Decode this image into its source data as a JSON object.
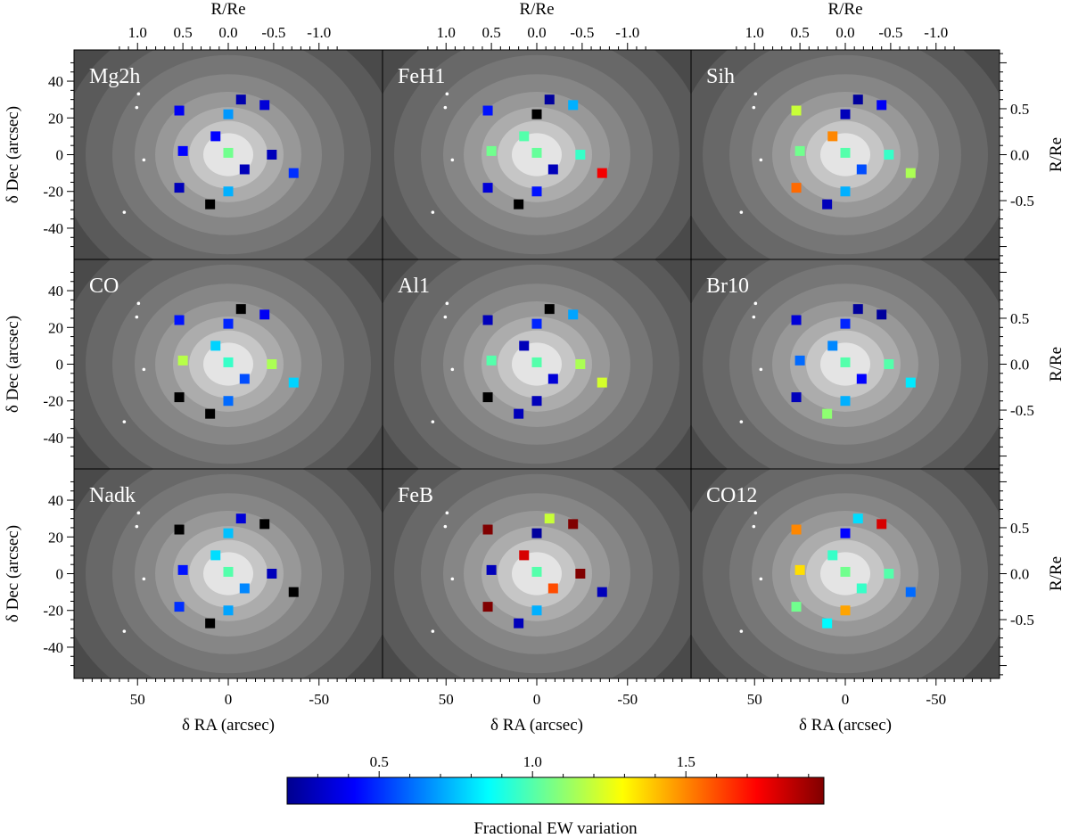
{
  "chart_data": {
    "type": "heatmap",
    "colorbar": {
      "label": "Fractional EW variation",
      "range": [
        0.2,
        1.95
      ],
      "ticks": [
        "0.5",
        "1.0",
        "1.5"
      ],
      "colormap": "jet"
    },
    "axes": {
      "xlabel": "δ RA (arcsec)",
      "ylabel": "δ Dec (arcsec)",
      "top_label": "R/Re",
      "right_label": "R/Re",
      "xlim": [
        85,
        -85
      ],
      "ylim": [
        -57,
        57
      ],
      "x_ticks": [
        "50",
        "0",
        "-50"
      ],
      "y_ticks": [
        "40",
        "20",
        "0",
        "-20",
        "-40"
      ],
      "top_ticks": [
        "1.0",
        "0.5",
        "0.0",
        "-0.5",
        "-1.0"
      ],
      "right_ticks": [
        "0.5",
        "0.0",
        "-0.5"
      ],
      "x_axis_reversed": true,
      "arcsec_per_re": 50
    },
    "positions": [
      [
        -7,
        30
      ],
      [
        27,
        24
      ],
      [
        -20,
        27
      ],
      [
        0,
        22
      ],
      [
        7,
        10
      ],
      [
        0,
        1
      ],
      [
        -9,
        -8
      ],
      [
        -24,
        0
      ],
      [
        25,
        2
      ],
      [
        -36,
        -10
      ],
      [
        27,
        -18
      ],
      [
        0,
        -20
      ],
      [
        10,
        -27
      ]
    ],
    "panels": [
      {
        "name": "Mg2h",
        "values": [
          0.28,
          0.4,
          0.35,
          0.68,
          0.42,
          1.05,
          0.3,
          0.3,
          0.42,
          0.5,
          0.3,
          0.72,
          null
        ]
      },
      {
        "name": "FeH1",
        "values": [
          0.25,
          0.45,
          0.72,
          null,
          1.0,
          1.03,
          0.3,
          0.95,
          1.05,
          1.75,
          0.35,
          0.45,
          null
        ]
      },
      {
        "name": "Sih",
        "values": [
          0.25,
          1.2,
          0.4,
          0.3,
          1.5,
          1.0,
          0.55,
          0.95,
          1.05,
          1.15,
          1.55,
          0.72,
          0.3
        ]
      },
      {
        "name": "CO",
        "values": [
          null,
          0.45,
          0.4,
          0.48,
          0.78,
          0.95,
          0.55,
          1.15,
          1.17,
          0.78,
          null,
          0.6,
          null
        ]
      },
      {
        "name": "Al1",
        "values": [
          null,
          0.3,
          0.7,
          0.48,
          0.3,
          1.0,
          0.35,
          1.15,
          1.0,
          1.22,
          null,
          0.3,
          0.3
        ]
      },
      {
        "name": "Br10",
        "values": [
          0.25,
          0.35,
          0.25,
          0.48,
          0.65,
          1.0,
          0.42,
          1.0,
          0.6,
          0.82,
          0.3,
          0.72,
          1.1
        ]
      },
      {
        "name": "Nadk",
        "values": [
          0.35,
          null,
          null,
          0.75,
          0.8,
          1.0,
          0.65,
          0.3,
          0.45,
          null,
          0.5,
          0.7,
          null
        ]
      },
      {
        "name": "FeB",
        "values": [
          1.2,
          1.95,
          1.95,
          0.25,
          1.8,
          1.0,
          1.6,
          1.95,
          0.3,
          0.3,
          1.95,
          0.72,
          0.3
        ]
      },
      {
        "name": "CO12",
        "values": [
          0.8,
          1.5,
          1.8,
          0.42,
          0.95,
          1.05,
          0.95,
          1.0,
          1.35,
          0.6,
          1.05,
          1.45,
          0.85
        ]
      }
    ]
  }
}
